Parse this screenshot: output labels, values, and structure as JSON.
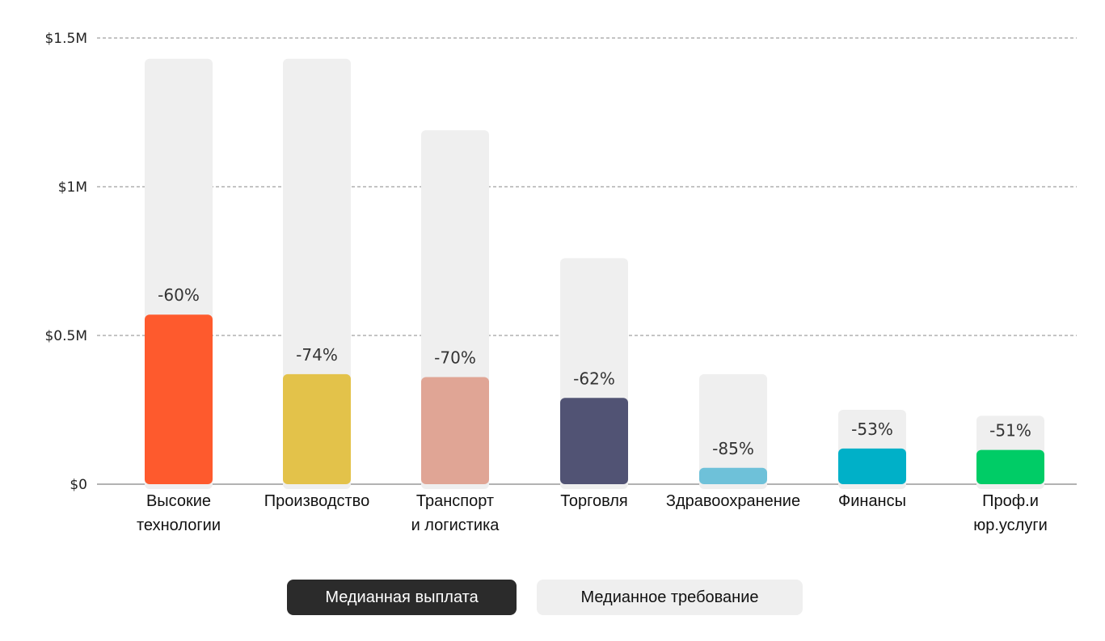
{
  "colors": {
    "demand_bar": "#efefef",
    "grid": "#888888",
    "axis": "#666666"
  },
  "legend": {
    "payout_label": "Медианная выплата",
    "payout_color": "#2b2b2b",
    "demand_label": "Медианное требование",
    "demand_color": "#efefef"
  },
  "chart_data": {
    "type": "bar",
    "title": "",
    "xlabel": "",
    "ylabel": "",
    "ylim": [
      0,
      1500000
    ],
    "y_ticks": [
      {
        "value": 0,
        "label": "$0"
      },
      {
        "value": 500000,
        "label": "$0.5M"
      },
      {
        "value": 1000000,
        "label": "$1M"
      },
      {
        "value": 1500000,
        "label": "$1.5M"
      }
    ],
    "grid": true,
    "legend_position": "bottom-center",
    "categories": [
      [
        "Высокие",
        "технологии"
      ],
      [
        "Производство"
      ],
      [
        "Транспорт",
        "и логистика"
      ],
      [
        "Торговля"
      ],
      [
        "Здравоохранение"
      ],
      [
        "Финансы"
      ],
      [
        "Проф.и",
        "юр.услуги"
      ]
    ],
    "series": [
      {
        "name": "Медианное требование",
        "values": [
          1430000,
          1430000,
          1190000,
          760000,
          370000,
          250000,
          230000
        ]
      },
      {
        "name": "Медианная выплата",
        "values": [
          570000,
          370000,
          360000,
          290000,
          55000,
          120000,
          115000
        ],
        "colors": [
          "#fe5a2d",
          "#e3c24a",
          "#e0a595",
          "#515374",
          "#6ec1d9",
          "#00b0c8",
          "#00cc66"
        ]
      }
    ],
    "data_labels": [
      "-60%",
      "-74%",
      "-70%",
      "-62%",
      "-85%",
      "-53%",
      "-51%"
    ]
  }
}
